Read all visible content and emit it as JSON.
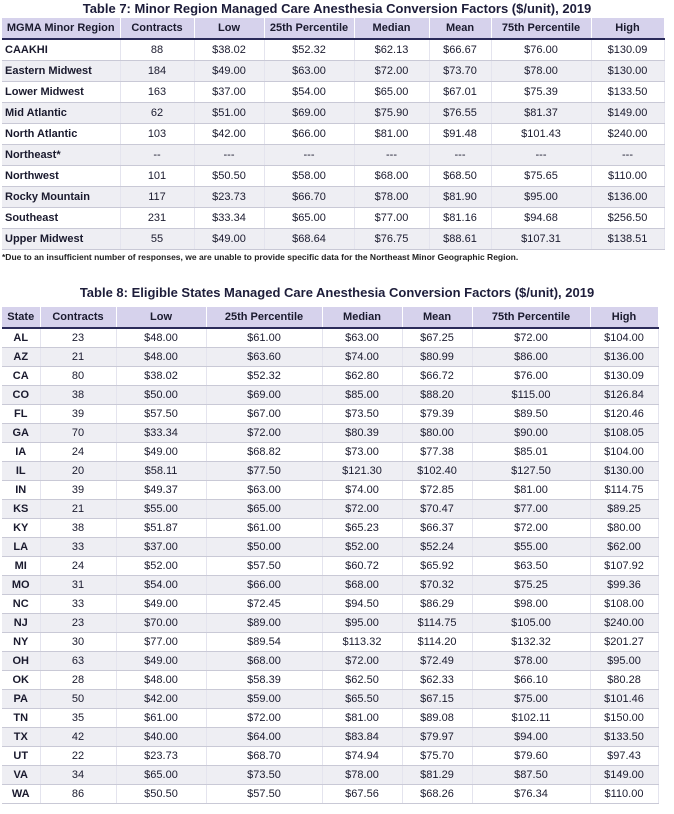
{
  "table7": {
    "title": "Table 7: Minor Region Managed Care Anesthesia Conversion Factors ($/unit), 2019",
    "headers": [
      "MGMA Minor Region",
      "Contracts",
      "Low",
      "25th Percentile",
      "Median",
      "Mean",
      "75th Percentile",
      "High"
    ],
    "rows": [
      [
        "CAAKHI",
        "88",
        "$38.02",
        "$52.32",
        "$62.13",
        "$66.67",
        "$76.00",
        "$130.09"
      ],
      [
        "Eastern Midwest",
        "184",
        "$49.00",
        "$63.00",
        "$72.00",
        "$73.70",
        "$78.00",
        "$130.00"
      ],
      [
        "Lower Midwest",
        "163",
        "$37.00",
        "$54.00",
        "$65.00",
        "$67.01",
        "$75.39",
        "$133.50"
      ],
      [
        "Mid Atlantic",
        "62",
        "$51.00",
        "$69.00",
        "$75.90",
        "$76.55",
        "$81.37",
        "$149.00"
      ],
      [
        "North Atlantic",
        "103",
        "$42.00",
        "$66.00",
        "$81.00",
        "$91.48",
        "$101.43",
        "$240.00"
      ],
      [
        "Northeast*",
        "--",
        "---",
        "---",
        "---",
        "---",
        "---",
        "---"
      ],
      [
        "Northwest",
        "101",
        "$50.50",
        "$58.00",
        "$68.00",
        "$68.50",
        "$75.65",
        "$110.00"
      ],
      [
        "Rocky Mountain",
        "117",
        "$23.73",
        "$66.70",
        "$78.00",
        "$81.90",
        "$95.00",
        "$136.00"
      ],
      [
        "Southeast",
        "231",
        "$33.34",
        "$65.00",
        "$77.00",
        "$81.16",
        "$94.68",
        "$256.50"
      ],
      [
        "Upper Midwest",
        "55",
        "$49.00",
        "$68.64",
        "$76.75",
        "$88.61",
        "$107.31",
        "$138.51"
      ]
    ],
    "footnote": "*Due to an insufficient number of responses, we are unable to provide specific data for the Northeast Minor Geographic Region."
  },
  "table8": {
    "title": "Table 8: Eligible States Managed Care Anesthesia Conversion Factors ($/unit), 2019",
    "headers": [
      "State",
      "Contracts",
      "Low",
      "25th Percentile",
      "Median",
      "Mean",
      "75th Percentile",
      "High"
    ],
    "rows": [
      [
        "AL",
        "23",
        "$48.00",
        "$61.00",
        "$63.00",
        "$67.25",
        "$72.00",
        "$104.00"
      ],
      [
        "AZ",
        "21",
        "$48.00",
        "$63.60",
        "$74.00",
        "$80.99",
        "$86.00",
        "$136.00"
      ],
      [
        "CA",
        "80",
        "$38.02",
        "$52.32",
        "$62.80",
        "$66.72",
        "$76.00",
        "$130.09"
      ],
      [
        "CO",
        "38",
        "$50.00",
        "$69.00",
        "$85.00",
        "$88.20",
        "$115.00",
        "$126.84"
      ],
      [
        "FL",
        "39",
        "$57.50",
        "$67.00",
        "$73.50",
        "$79.39",
        "$89.50",
        "$120.46"
      ],
      [
        "GA",
        "70",
        "$33.34",
        "$72.00",
        "$80.39",
        "$80.00",
        "$90.00",
        "$108.05"
      ],
      [
        "IA",
        "24",
        "$49.00",
        "$68.82",
        "$73.00",
        "$77.38",
        "$85.01",
        "$104.00"
      ],
      [
        "IL",
        "20",
        "$58.11",
        "$77.50",
        "$121.30",
        "$102.40",
        "$127.50",
        "$130.00"
      ],
      [
        "IN",
        "39",
        "$49.37",
        "$63.00",
        "$74.00",
        "$72.85",
        "$81.00",
        "$114.75"
      ],
      [
        "KS",
        "21",
        "$55.00",
        "$65.00",
        "$72.00",
        "$70.47",
        "$77.00",
        "$89.25"
      ],
      [
        "KY",
        "38",
        "$51.87",
        "$61.00",
        "$65.23",
        "$66.37",
        "$72.00",
        "$80.00"
      ],
      [
        "LA",
        "33",
        "$37.00",
        "$50.00",
        "$52.00",
        "$52.24",
        "$55.00",
        "$62.00"
      ],
      [
        "MI",
        "24",
        "$52.00",
        "$57.50",
        "$60.72",
        "$65.92",
        "$63.50",
        "$107.92"
      ],
      [
        "MO",
        "31",
        "$54.00",
        "$66.00",
        "$68.00",
        "$70.32",
        "$75.25",
        "$99.36"
      ],
      [
        "NC",
        "33",
        "$49.00",
        "$72.45",
        "$94.50",
        "$86.29",
        "$98.00",
        "$108.00"
      ],
      [
        "NJ",
        "23",
        "$70.00",
        "$89.00",
        "$95.00",
        "$114.75",
        "$105.00",
        "$240.00"
      ],
      [
        "NY",
        "30",
        "$77.00",
        "$89.54",
        "$113.32",
        "$114.20",
        "$132.32",
        "$201.27"
      ],
      [
        "OH",
        "63",
        "$49.00",
        "$68.00",
        "$72.00",
        "$72.49",
        "$78.00",
        "$95.00"
      ],
      [
        "OK",
        "28",
        "$48.00",
        "$58.39",
        "$62.50",
        "$62.33",
        "$66.10",
        "$80.28"
      ],
      [
        "PA",
        "50",
        "$42.00",
        "$59.00",
        "$65.50",
        "$67.15",
        "$75.00",
        "$101.46"
      ],
      [
        "TN",
        "35",
        "$61.00",
        "$72.00",
        "$81.00",
        "$89.08",
        "$102.11",
        "$150.00"
      ],
      [
        "TX",
        "42",
        "$40.00",
        "$64.00",
        "$83.84",
        "$79.97",
        "$94.00",
        "$133.50"
      ],
      [
        "UT",
        "22",
        "$23.73",
        "$68.70",
        "$74.94",
        "$75.70",
        "$79.60",
        "$97.43"
      ],
      [
        "VA",
        "34",
        "$65.00",
        "$73.50",
        "$78.00",
        "$81.29",
        "$87.50",
        "$149.00"
      ],
      [
        "WA",
        "86",
        "$50.50",
        "$57.50",
        "$67.56",
        "$68.26",
        "$76.34",
        "$110.00"
      ]
    ]
  }
}
